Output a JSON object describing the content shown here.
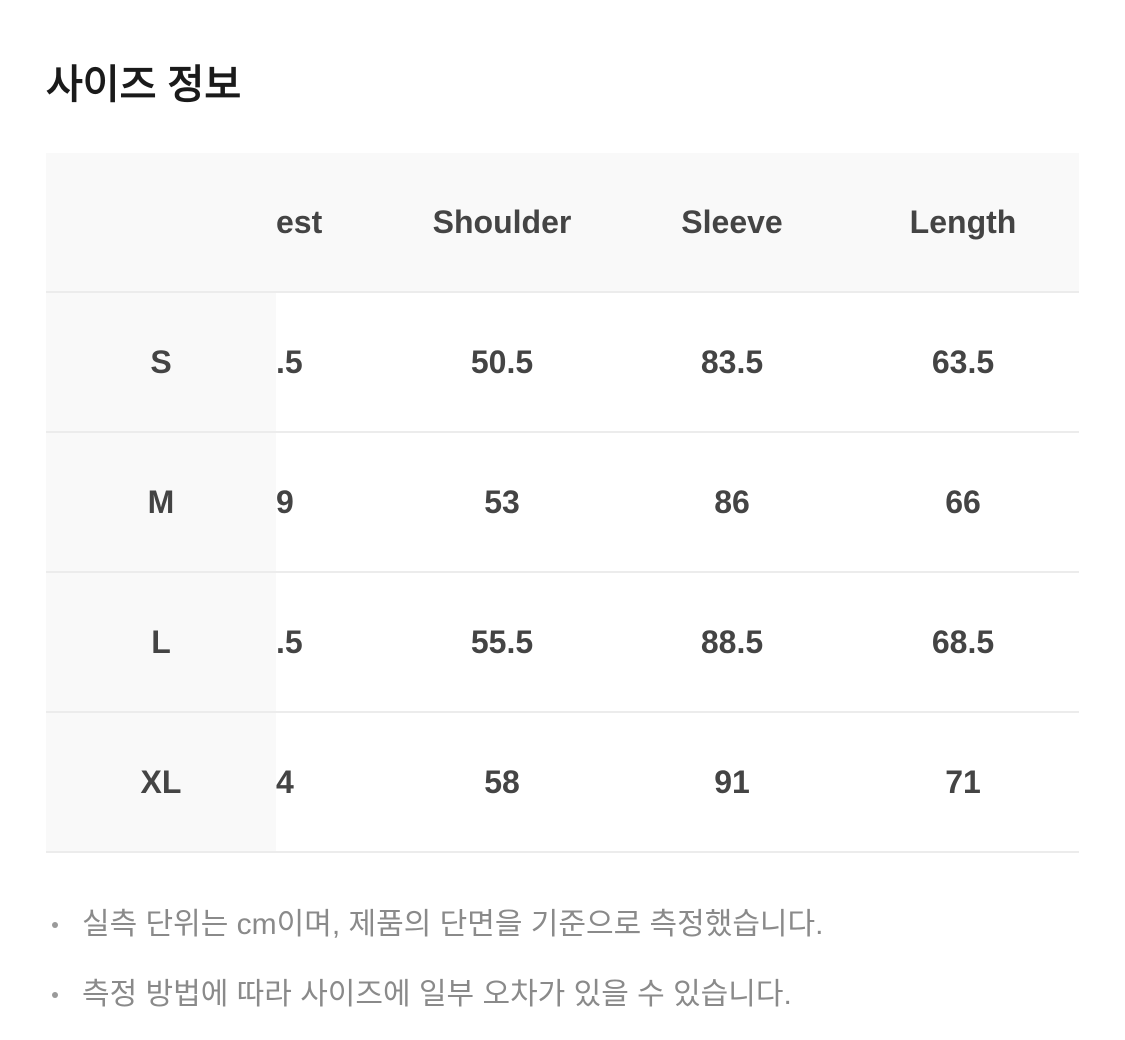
{
  "title": "사이즈 정보",
  "table": {
    "headers": [
      "",
      "est",
      "Shoulder",
      "Sleeve",
      "Length"
    ],
    "rows": [
      {
        "size": "S",
        "chest": ".5",
        "shoulder": "50.5",
        "sleeve": "83.5",
        "length": "63.5"
      },
      {
        "size": "M",
        "chest": "9",
        "shoulder": "53",
        "sleeve": "86",
        "length": "66"
      },
      {
        "size": "L",
        "chest": ".5",
        "shoulder": "55.5",
        "sleeve": "88.5",
        "length": "68.5"
      },
      {
        "size": "XL",
        "chest": "4",
        "shoulder": "58",
        "sleeve": "91",
        "length": "71"
      }
    ]
  },
  "notes": [
    "실측 단위는 cm이며, 제품의 단면을 기준으로 측정했습니다.",
    "측정 방법에 따라 사이즈에 일부 오차가 있을 수 있습니다."
  ]
}
